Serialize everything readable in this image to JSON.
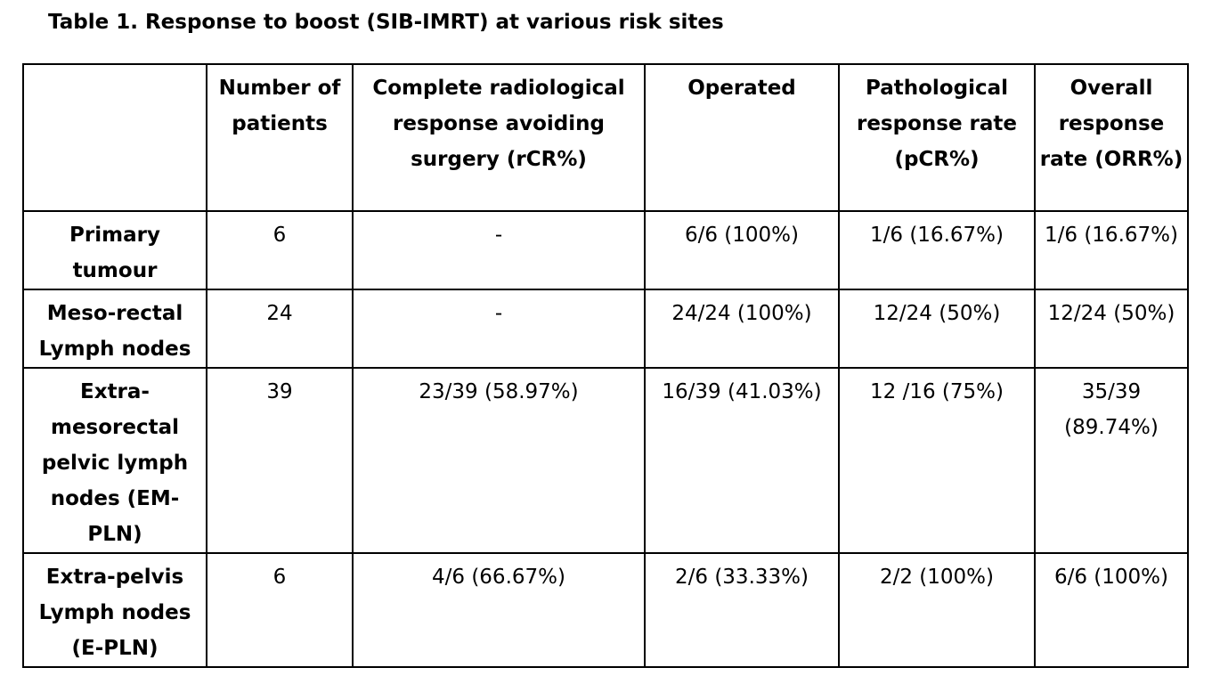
{
  "caption": "Table 1. Response to boost (SIB-IMRT) at various risk sites",
  "headers": [
    "",
    "Number of patients",
    "Complete radiological response avoiding surgery (rCR%)",
    "Operated",
    "Pathological response rate (pCR%)",
    "Overall response rate (ORR%)"
  ],
  "rows": [
    {
      "site": "Primary tumour",
      "patients": "6",
      "rcr": "-",
      "operated": "6/6 (100%)",
      "pcr": "1/6 (16.67%)",
      "orr": "1/6 (16.67%)"
    },
    {
      "site": "Meso-rectal Lymph nodes",
      "patients": "24",
      "rcr": "-",
      "operated": "24/24 (100%)",
      "pcr": "12/24 (50%)",
      "orr": "12/24 (50%)"
    },
    {
      "site": "Extra-mesorectal pelvic lymph nodes (EM-PLN)",
      "patients": "39",
      "rcr": "23/39 (58.97%)",
      "operated": "16/39 (41.03%)",
      "pcr": "12 /16 (75%)",
      "orr": "35/39 (89.74%)"
    },
    {
      "site": "Extra-pelvis Lymph nodes (E-PLN)",
      "patients": "6",
      "rcr": "4/6 (66.67%)",
      "operated": "2/6 (33.33%)",
      "pcr": "2/2 (100%)",
      "orr": "6/6 (100%)"
    }
  ]
}
